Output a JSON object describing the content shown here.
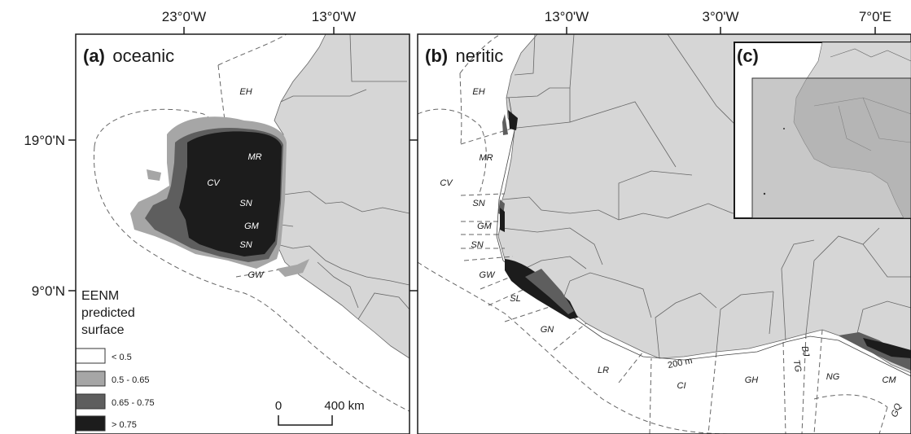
{
  "axis_labels": {
    "lon": [
      "23°0'W",
      "13°0'W",
      "13°0'W",
      "3°0'W",
      "7°0'E"
    ],
    "lat": [
      "19°0'N",
      "9°0'N"
    ]
  },
  "panel_a": {
    "letter": "(a)",
    "name": "oceanic",
    "zones": [
      "EH",
      "MR",
      "CV",
      "SN",
      "GM",
      "SN",
      "GW"
    ],
    "legend": {
      "title_lines": [
        "EENM",
        "predicted",
        "surface"
      ],
      "classes": [
        {
          "label": "< 0.5",
          "color": "#ffffff"
        },
        {
          "label": "0.5 - 0.65",
          "color": "#a6a6a6"
        },
        {
          "label": "0.65 - 0.75",
          "color": "#5e5e5e"
        },
        {
          "label": "> 0.75",
          "color": "#1c1c1c"
        }
      ]
    },
    "scalebar": {
      "start": "0",
      "end": "400 km"
    }
  },
  "panel_b": {
    "letter": "(b)",
    "name": "neritic",
    "zones": [
      "EH",
      "MR",
      "CV",
      "SN",
      "GM",
      "SN",
      "GW",
      "SL",
      "GN",
      "LR",
      "CI",
      "GH",
      "TG",
      "BJ",
      "NG",
      "CM",
      "GQ"
    ],
    "isobath": "200 m"
  },
  "panel_c": {
    "letter": "(c)"
  },
  "colors": {
    "land": "#d6d6d6",
    "sea": "#ffffff",
    "frame": "#1a1a1a",
    "boundary": "#555555"
  }
}
